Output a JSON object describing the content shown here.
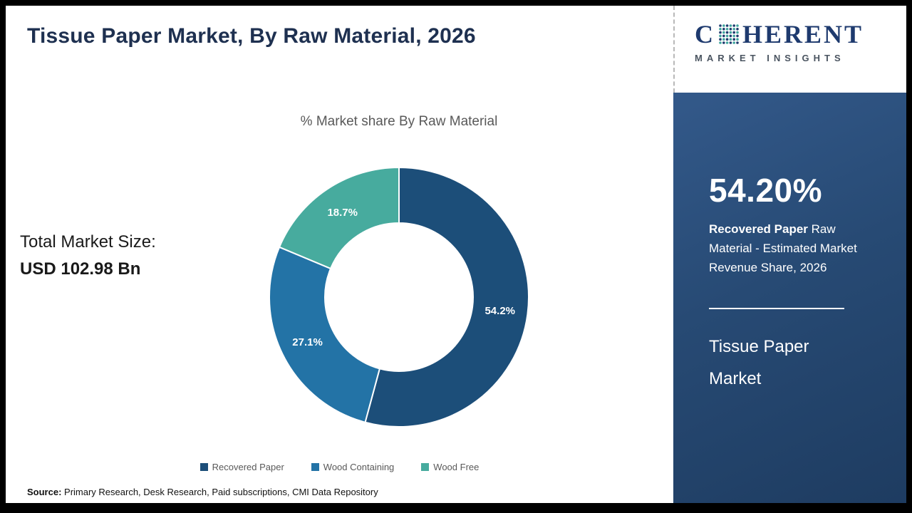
{
  "header": {
    "title": "Tissue Paper Market, By Raw Material, 2026"
  },
  "logo": {
    "brand_c": "C",
    "brand_rest": "HERENT",
    "tagline": "MARKET INSIGHTS",
    "navy": "#1e3a6e",
    "teal": "#3fa69d"
  },
  "left_stat": {
    "label": "Total Market Size:",
    "value": "USD 102.98 Bn"
  },
  "chart_data": {
    "type": "pie",
    "subtype": "donut",
    "title": "% Market share By Raw Material",
    "categories": [
      "Recovered Paper",
      "Wood Containing",
      "Wood Free"
    ],
    "values": [
      54.2,
      27.1,
      18.7
    ],
    "labels": [
      "54.2%",
      "27.1%",
      "18.7%"
    ],
    "colors": [
      "#1c4e79",
      "#2373a6",
      "#47ab9e"
    ],
    "legend_position": "bottom",
    "start_angle_deg": 0,
    "direction": "clockwise"
  },
  "side_panel": {
    "headline": "54.20%",
    "description_bold": "Recovered Paper",
    "description_rest": " Raw Material - Estimated Market Revenue Share, 2026",
    "footer": "Tissue Paper Market",
    "background": "#25476f"
  },
  "source": {
    "label": "Source:",
    "text": " Primary Research, Desk Research, Paid subscriptions, CMI Data Repository"
  }
}
